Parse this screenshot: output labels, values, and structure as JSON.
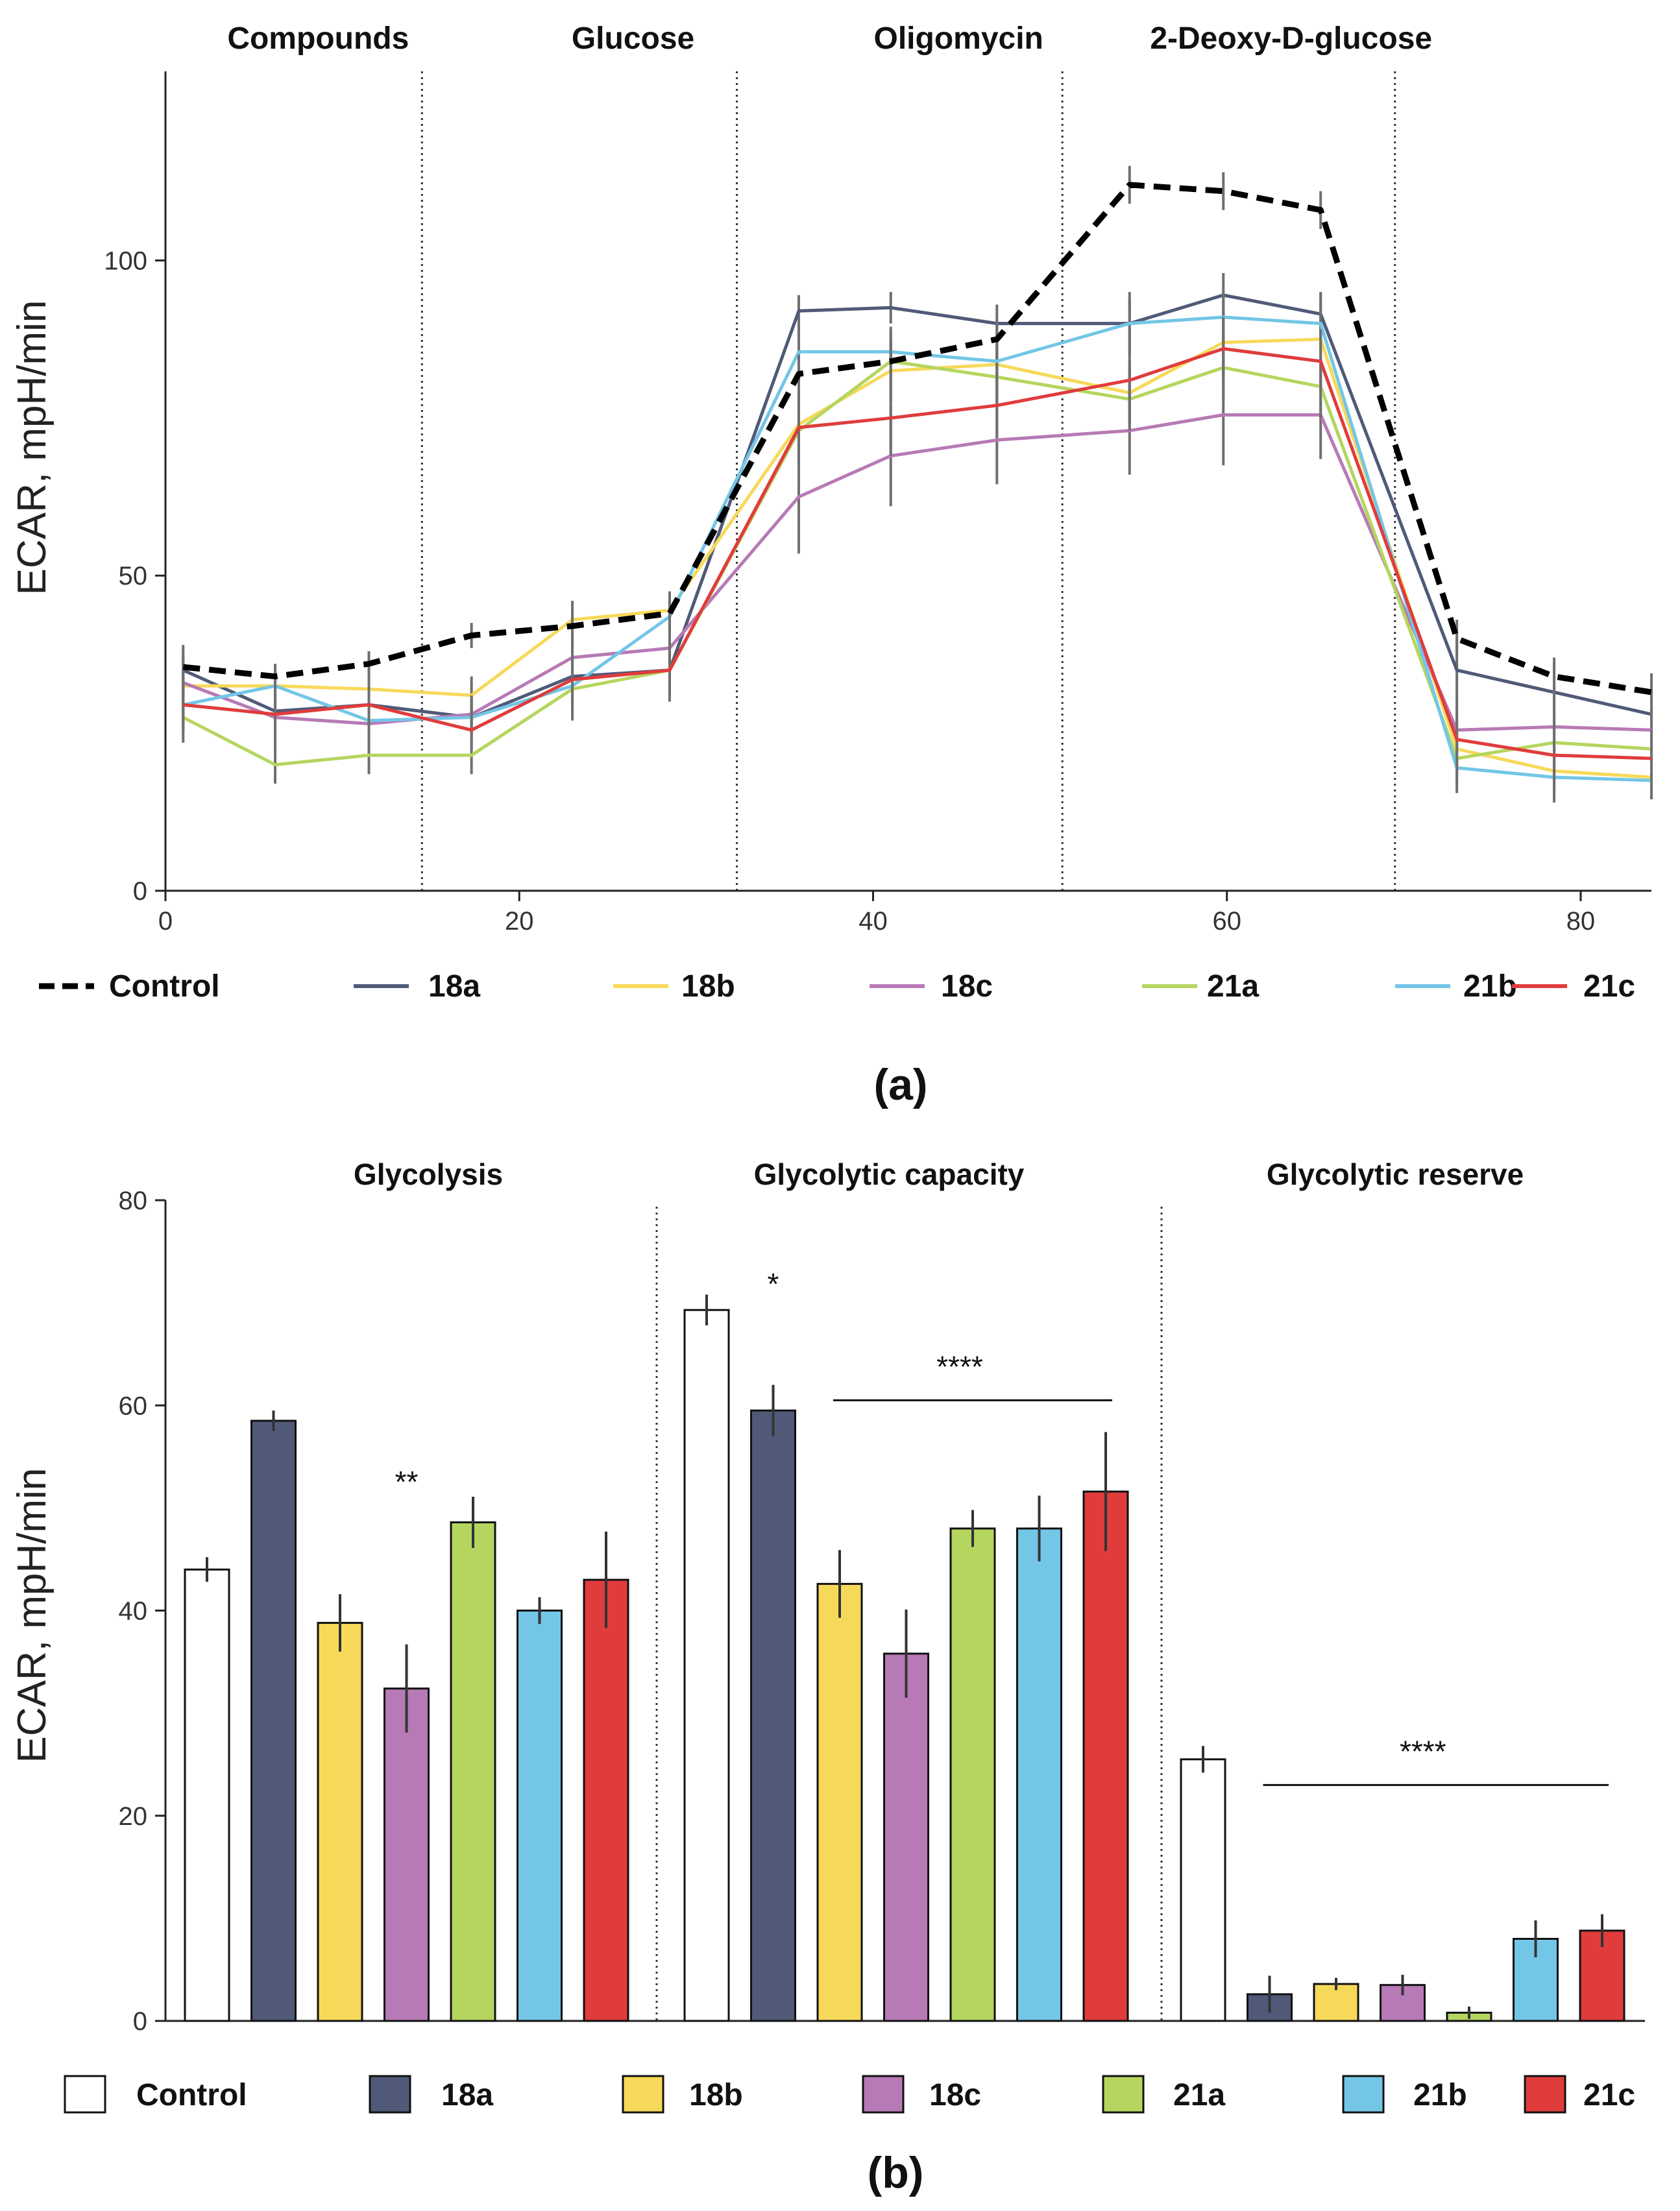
{
  "colors": {
    "Control_line": "#000000",
    "Control_fill": "#ffffff",
    "18a": "#505a78",
    "18b": "#f7d95a",
    "18c": "#b77ab6",
    "21a": "#b4d65e",
    "21b": "#73c6e6",
    "21c": "#e03c3c"
  },
  "chart_data": [
    {
      "type": "line",
      "panel_label": "(a)",
      "ylabel": "ECAR, mpH/min",
      "xlabel": "",
      "xlim": [
        0,
        84
      ],
      "ylim": [
        0,
        130
      ],
      "xticks": [
        "0",
        "20",
        "40",
        "60",
        "80"
      ],
      "yticks": [
        "0",
        "50",
        "100"
      ],
      "injections": [
        {
          "label": "Compounds",
          "x": 14.5
        },
        {
          "label": "Glucose",
          "x": 32.3
        },
        {
          "label": "Oligomycin",
          "x": 50.7
        },
        {
          "label": "2-Deoxy-D-glucose",
          "x": 69.5
        }
      ],
      "x": [
        1,
        6.2,
        11.5,
        17.3,
        23,
        28.5,
        35.8,
        41,
        47,
        54.5,
        59.8,
        65.3,
        73,
        78.5,
        84
      ],
      "series": [
        {
          "name": "Control",
          "key": "Control",
          "dashed": true,
          "values": [
            35.5,
            34,
            36,
            40.5,
            42,
            44,
            82,
            84,
            87.5,
            112,
            111,
            108,
            40,
            34,
            31.5
          ],
          "errors": [
            2,
            2,
            2,
            2,
            2,
            2,
            3,
            3,
            3,
            3,
            3,
            3,
            3,
            3,
            3
          ]
        },
        {
          "name": "18a",
          "key": "18a",
          "dashed": false,
          "values": [
            35,
            28.5,
            29.5,
            27.5,
            34,
            35,
            92,
            92.5,
            90,
            90,
            94.5,
            91.5,
            35,
            31.5,
            28
          ],
          "errors": [
            4,
            5,
            4,
            3,
            7,
            5,
            2.5,
            2.5,
            3,
            5,
            3.5,
            3.5,
            5,
            5,
            4
          ]
        },
        {
          "name": "18b",
          "key": "18b",
          "dashed": false,
          "values": [
            32.5,
            32.5,
            32,
            31,
            43,
            44.5,
            74,
            82.5,
            83.5,
            79,
            87,
            87.5,
            22.5,
            19,
            18
          ],
          "errors": [
            3,
            3,
            3,
            3,
            3,
            3,
            5,
            5,
            5,
            5,
            5,
            5,
            4,
            4,
            3
          ]
        },
        {
          "name": "18c",
          "key": "18c",
          "dashed": false,
          "values": [
            33,
            27.5,
            26.5,
            28,
            37,
            38.5,
            62.5,
            69,
            71.5,
            73,
            75.5,
            75.5,
            25.5,
            26,
            25.5
          ],
          "errors": [
            4,
            5,
            5,
            3,
            5,
            4,
            9,
            8,
            7,
            7,
            8,
            7,
            5,
            5,
            5
          ]
        },
        {
          "name": "21a",
          "key": "21a",
          "dashed": false,
          "values": [
            27.5,
            20,
            21.5,
            21.5,
            32,
            35,
            73,
            84,
            81.5,
            78,
            83,
            80,
            21,
            23.5,
            22.5
          ],
          "errors": [
            4,
            3,
            3,
            3,
            3,
            3,
            5,
            5,
            5,
            5,
            5,
            5,
            4,
            4,
            3
          ]
        },
        {
          "name": "21b",
          "key": "21b",
          "dashed": false,
          "values": [
            29.5,
            32.5,
            27,
            27.5,
            32.5,
            43.5,
            85.5,
            85.5,
            84,
            90,
            91,
            90,
            19.5,
            18,
            17.5
          ],
          "errors": [
            4,
            3,
            3,
            3,
            3,
            3,
            4,
            4,
            4,
            4,
            4,
            4,
            4,
            4,
            3
          ]
        },
        {
          "name": "21c",
          "key": "21c",
          "dashed": false,
          "values": [
            29.5,
            28,
            29.5,
            25.5,
            33.5,
            35,
            73.5,
            75,
            77,
            81,
            86,
            84,
            24,
            21.5,
            21
          ],
          "errors": [
            4,
            4,
            4,
            3,
            4,
            4,
            6,
            6,
            5,
            5,
            5,
            5,
            5,
            5,
            4
          ]
        }
      ],
      "legend": [
        "Control",
        "18a",
        "18b",
        "18c",
        "21a",
        "21b",
        "21c"
      ]
    },
    {
      "type": "bar",
      "panel_label": "(b)",
      "ylabel": "ECAR, mpH/min",
      "ylim": [
        0,
        80
      ],
      "yticks": [
        "0",
        "20",
        "40",
        "60",
        "80"
      ],
      "series_names": [
        "Control",
        "18a",
        "18b",
        "18c",
        "21a",
        "21b",
        "21c"
      ],
      "groups": [
        {
          "label": "Glycolysis",
          "values": [
            44,
            58.5,
            38.8,
            32.4,
            48.6,
            40,
            43
          ],
          "errors": [
            1.2,
            1,
            2.8,
            4.3,
            2.5,
            1.3,
            4.7
          ],
          "annotations": [
            {
              "text": "**",
              "bar": 3
            }
          ],
          "bracket": null
        },
        {
          "label": "Glycolytic capacity",
          "values": [
            69.3,
            59.5,
            42.6,
            35.8,
            48,
            48,
            51.6
          ],
          "errors": [
            1.5,
            2.5,
            3.3,
            4.3,
            1.8,
            3.2,
            5.8
          ],
          "annotations": [
            {
              "text": "*",
              "bar": 1
            }
          ],
          "bracket": {
            "text": "****",
            "from": 2,
            "to": 6,
            "y": 60.5
          }
        },
        {
          "label": "Glycolytic reserve",
          "values": [
            25.5,
            2.6,
            3.6,
            3.5,
            0.8,
            8,
            8.8
          ],
          "errors": [
            1.3,
            1.8,
            0.6,
            1,
            0.6,
            1.8,
            1.6
          ],
          "annotations": [],
          "bracket": {
            "text": "****",
            "from": 1,
            "to": 6,
            "y": 23
          }
        }
      ],
      "legend": [
        "Control",
        "18a",
        "18b",
        "18c",
        "21a",
        "21b",
        "21c"
      ]
    }
  ]
}
